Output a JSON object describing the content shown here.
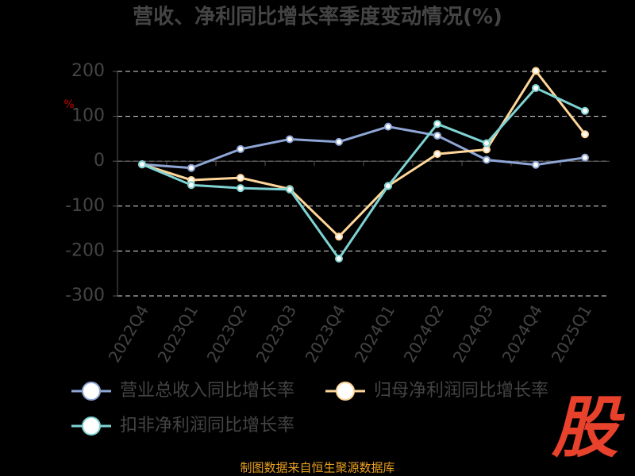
{
  "chart_data": {
    "type": "line",
    "title": "营收、净利同比增长率季度变动情况(%)",
    "y_label": "%",
    "categories": [
      "2022Q4",
      "2023Q1",
      "2023Q2",
      "2023Q3",
      "2023Q4",
      "2024Q1",
      "2024Q2",
      "2024Q3",
      "2024Q4",
      "2025Q1"
    ],
    "series": [
      {
        "name": "营业总收入同比增长率",
        "color": "#8ea6d6",
        "values": [
          -7,
          -15,
          27,
          49,
          43,
          77,
          57,
          3,
          -8,
          8
        ]
      },
      {
        "name": "归母净利润同比增长率",
        "color": "#ffd699",
        "values": [
          -7,
          -42,
          -37,
          -62,
          -168,
          -55,
          16,
          26,
          201,
          60
        ]
      },
      {
        "name": "扣非净利润同比增长率",
        "color": "#7fd3d3",
        "values": [
          -7,
          -53,
          -60,
          -63,
          -217,
          -55,
          83,
          40,
          163,
          112
        ]
      }
    ],
    "ylim": [
      -300,
      200
    ],
    "yticks": [
      -300,
      -200,
      -100,
      0,
      100,
      200
    ],
    "grid": true,
    "source": "制图数据来自恒生聚源数据库",
    "logo": "股"
  }
}
